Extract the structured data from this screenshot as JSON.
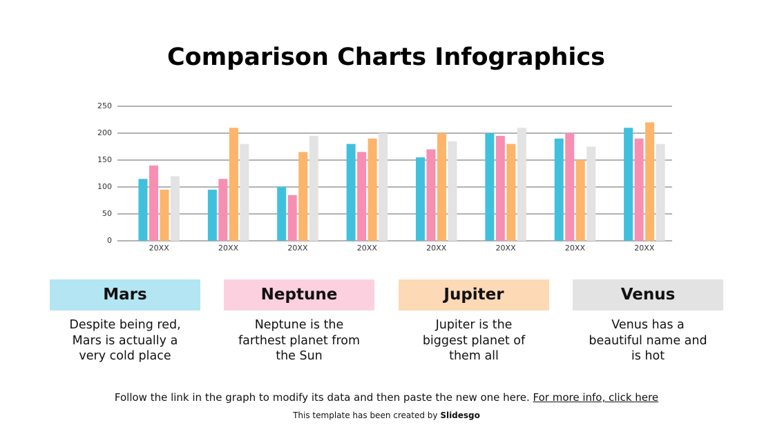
{
  "chart_data": {
    "type": "bar",
    "title": "Comparison Charts Infographics",
    "categories": [
      "20XX",
      "20XX",
      "20XX",
      "20XX",
      "20XX",
      "20XX",
      "20XX",
      "20XX"
    ],
    "series": [
      {
        "name": "Mars",
        "color": "#3fc1de",
        "values": [
          115,
          95,
          100,
          180,
          155,
          200,
          190,
          210
        ]
      },
      {
        "name": "Neptune",
        "color": "#f78fb3",
        "values": [
          140,
          115,
          85,
          165,
          170,
          195,
          200,
          190
        ]
      },
      {
        "name": "Jupiter",
        "color": "#fdb46b",
        "values": [
          95,
          210,
          165,
          190,
          200,
          180,
          150,
          220
        ]
      },
      {
        "name": "Venus",
        "color": "#e3e3e3",
        "values": [
          120,
          180,
          195,
          200,
          185,
          210,
          175,
          180
        ]
      }
    ],
    "ylim": [
      0,
      250
    ],
    "yticks": [
      0,
      50,
      100,
      150,
      200,
      250
    ],
    "grid": true
  },
  "cards": [
    {
      "description": [
        "Despite being red,",
        "Mars is actually a",
        "very cold place"
      ]
    },
    {
      "description": [
        "Neptune is the",
        "farthest planet from",
        "the Sun"
      ]
    },
    {
      "description": [
        "Jupiter is the",
        "biggest planet of",
        "them all"
      ]
    },
    {
      "description": [
        "Venus has a",
        "beautiful name and",
        "is hot"
      ]
    }
  ],
  "footer": {
    "text": "Follow the link in the graph to modify its data and then paste the new one here.",
    "link": "For more info, click here",
    "credit": "This template has been created by",
    "brand": "Slidesgo"
  }
}
